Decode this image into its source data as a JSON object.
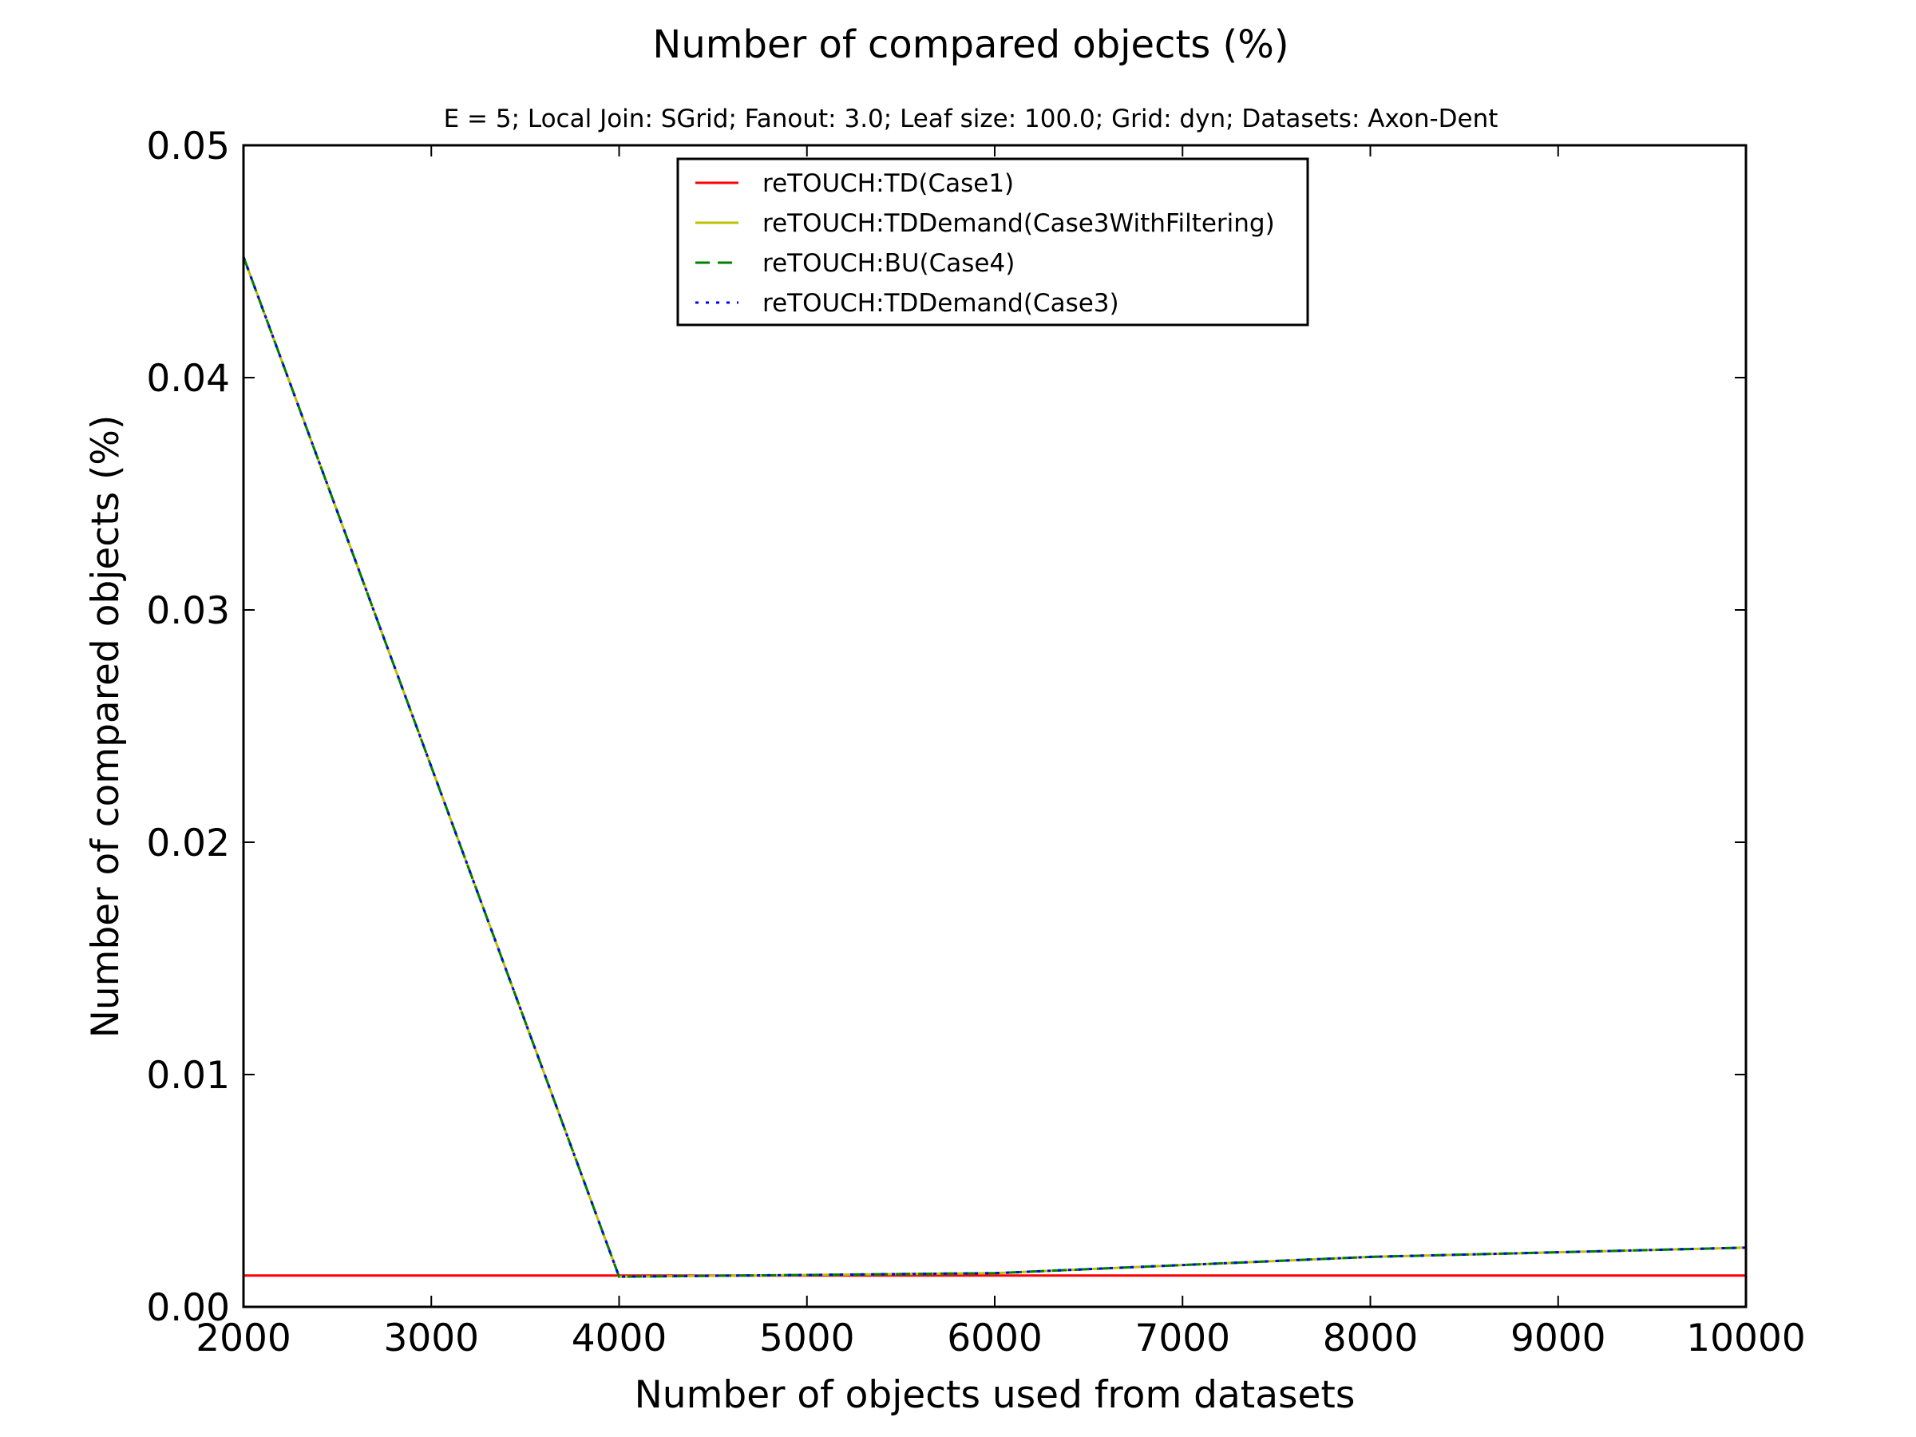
{
  "chart_data": {
    "type": "line",
    "title": "Number of compared objects (%)",
    "subtitle": "E = 5; Local Join: SGrid; Fanout: 3.0; Leaf size: 100.0; Grid: dyn; Datasets: Axon-Dent",
    "xlabel": "Number of objects used from datasets",
    "ylabel": "Number of compared objects (%)",
    "xlim": [
      2000,
      10000
    ],
    "ylim": [
      0,
      0.05
    ],
    "xticks": [
      2000,
      3000,
      4000,
      5000,
      6000,
      7000,
      8000,
      9000,
      10000
    ],
    "xtick_labels": [
      "2000",
      "3000",
      "4000",
      "5000",
      "6000",
      "7000",
      "8000",
      "9000",
      "10000"
    ],
    "yticks": [
      0,
      0.01,
      0.02,
      0.03,
      0.04,
      0.05
    ],
    "ytick_labels": [
      "0.00",
      "0.01",
      "0.02",
      "0.03",
      "0.04",
      "0.05"
    ],
    "grid": false,
    "legend_position": "top-center",
    "x": [
      2000,
      4000,
      6000,
      8000,
      10000
    ],
    "series": [
      {
        "name": "reTOUCH:TD(Case1)",
        "values": [
          0.00135,
          0.00135,
          0.00135,
          0.00135,
          0.00135
        ],
        "color": "#ff0000",
        "style": "solid"
      },
      {
        "name": "reTOUCH:TDDemand(Case3WithFiltering)",
        "values": [
          0.0452,
          0.0013,
          0.00145,
          0.00215,
          0.00255
        ],
        "color": "#bfbf00",
        "style": "solid"
      },
      {
        "name": "reTOUCH:BU(Case4)",
        "values": [
          0.0452,
          0.0013,
          0.00145,
          0.00215,
          0.00255
        ],
        "color": "#008000",
        "style": "dashed"
      },
      {
        "name": "reTOUCH:TDDemand(Case3)",
        "values": [
          0.0452,
          0.0013,
          0.00145,
          0.00215,
          0.00255
        ],
        "color": "#0000ff",
        "style": "dotted"
      }
    ]
  }
}
